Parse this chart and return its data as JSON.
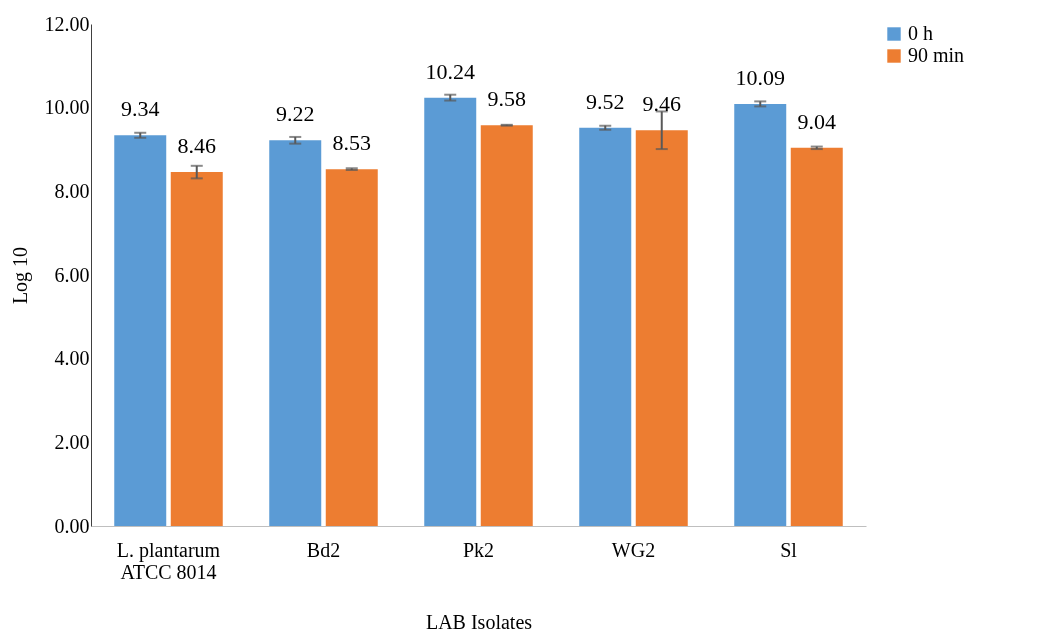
{
  "chart_data": {
    "type": "bar",
    "xlabel": "LAB Isolates",
    "ylabel": "Log 10",
    "categories": [
      "L. plantarum ATCC 8014",
      "Bd2",
      "Pk2",
      "WG2",
      "Sl"
    ],
    "series": [
      {
        "name": "0 h",
        "color": "#5b9bd5",
        "values": [
          9.34,
          9.22,
          10.24,
          9.52,
          10.09
        ],
        "errors": [
          0.06,
          0.08,
          0.07,
          0.05,
          0.06
        ]
      },
      {
        "name": "90 min",
        "color": "#ed7d31",
        "values": [
          8.46,
          8.53,
          9.58,
          9.46,
          9.04
        ],
        "errors": [
          0.15,
          0.02,
          0.01,
          0.45,
          0.03
        ]
      }
    ],
    "ylim": [
      0,
      12
    ],
    "yticks": [
      {
        "value": 0,
        "label": "0.00"
      },
      {
        "value": 2,
        "label": "2.00"
      },
      {
        "value": 4,
        "label": "4.00"
      },
      {
        "value": 6,
        "label": "6.00"
      },
      {
        "value": 8,
        "label": "8.00"
      },
      {
        "value": 10,
        "label": "10.00"
      },
      {
        "value": 12,
        "label": "12.00"
      }
    ],
    "grid": false,
    "legend": "right",
    "data_labels": true
  }
}
